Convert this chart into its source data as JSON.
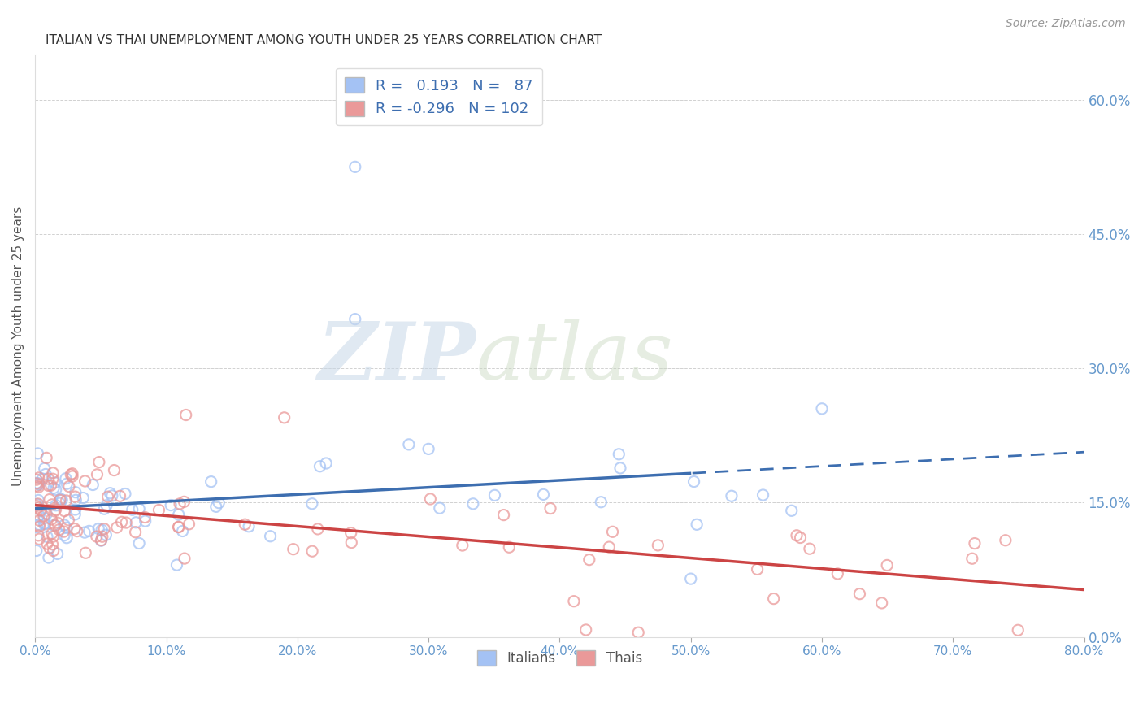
{
  "title": "ITALIAN VS THAI UNEMPLOYMENT AMONG YOUTH UNDER 25 YEARS CORRELATION CHART",
  "source": "Source: ZipAtlas.com",
  "ylabel": "Unemployment Among Youth under 25 years",
  "xlim": [
    0.0,
    0.8
  ],
  "ylim": [
    0.0,
    0.65
  ],
  "yticks": [
    0.0,
    0.15,
    0.3,
    0.45,
    0.6
  ],
  "xticks": [
    0.0,
    0.1,
    0.2,
    0.3,
    0.4,
    0.5,
    0.6,
    0.7,
    0.8
  ],
  "italian_color": "#a4c2f4",
  "thai_color": "#ea9999",
  "italian_R": 0.193,
  "italian_N": 87,
  "thai_R": -0.296,
  "thai_N": 102,
  "background_color": "#ffffff",
  "right_axis_color": "#6699cc",
  "trend_italian_color": "#3d6eb0",
  "trend_thai_color": "#cc4444",
  "legend_text_color": "#3d6eb0",
  "title_color": "#333333",
  "axis_label_color": "#555555",
  "tick_color": "#555555",
  "grid_color": "#cccccc",
  "source_color": "#999999"
}
